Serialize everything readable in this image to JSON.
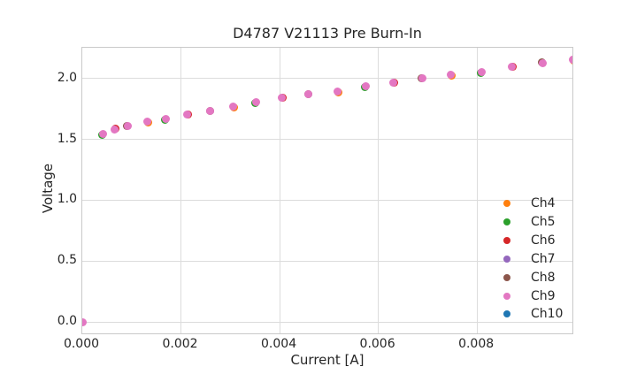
{
  "chart_data": {
    "type": "scatter",
    "title": "D4787 V21113 Pre Burn-In",
    "xlabel": "Current [A]",
    "ylabel": "Voltage",
    "xlim": [
      0,
      0.00997
    ],
    "ylim": [
      -0.109,
      2.254
    ],
    "grid": true,
    "legend_position": "lower right",
    "legend_frame": false,
    "xticks": {
      "values": [
        0,
        0.002,
        0.004,
        0.006,
        0.008
      ],
      "labels": [
        "0.000",
        "0.002",
        "0.004",
        "0.006",
        "0.008"
      ]
    },
    "yticks": {
      "values": [
        0,
        0.5,
        1.0,
        1.5,
        2.0
      ],
      "labels": [
        "0.0",
        "0.5",
        "1.0",
        "1.5",
        "2.0"
      ]
    },
    "series": [
      {
        "name": "Ch4",
        "color": "#ff7f0e"
      },
      {
        "name": "Ch5",
        "color": "#2ca02c"
      },
      {
        "name": "Ch6",
        "color": "#d62728"
      },
      {
        "name": "Ch7",
        "color": "#9467bd"
      },
      {
        "name": "Ch8",
        "color": "#8c564b"
      },
      {
        "name": "Ch9",
        "color": "#e377c2"
      },
      {
        "name": "Ch10",
        "color": "#1f77b4"
      }
    ],
    "overlap_note": "All channels lie on nearly identical curves; Ch9 (pink) is drawn on top with slight fringes of the other channel colors visible at dot edges.",
    "points": {
      "x": [
        0,
        0.00043,
        0.00065,
        0.00093,
        0.00131,
        0.00169,
        0.00213,
        0.0026,
        0.00305,
        0.00353,
        0.00405,
        0.00459,
        0.00517,
        0.00574,
        0.0063,
        0.00689,
        0.00746,
        0.00809,
        0.0087,
        0.00933,
        0.00994
      ],
      "y": [
        0,
        1.542,
        1.582,
        1.607,
        1.644,
        1.669,
        1.702,
        1.731,
        1.767,
        1.804,
        1.84,
        1.869,
        1.891,
        1.935,
        1.964,
        2.0,
        2.029,
        2.051,
        2.095,
        2.124,
        2.153
      ]
    },
    "top_series_color": "#e377c2",
    "fringe_colors": [
      "#ff7f0e",
      "#2ca02c",
      "#d62728",
      "#8c564b"
    ]
  }
}
